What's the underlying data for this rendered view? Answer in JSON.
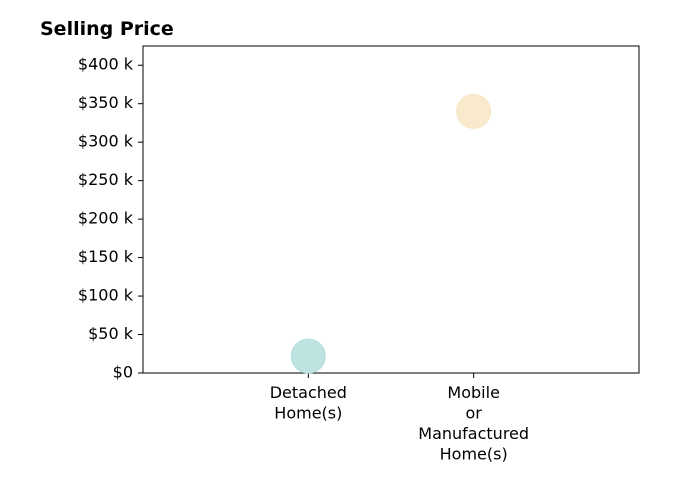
{
  "chart_data": {
    "type": "scatter",
    "title": "Selling Price",
    "xlabel": "",
    "ylabel": "",
    "categories": [
      [
        "Detached",
        "Home(s)"
      ],
      [
        "Mobile",
        "or",
        "Manufactured",
        "Home(s)"
      ]
    ],
    "points": [
      {
        "category_index": 0,
        "value": 22000,
        "color": "#b2dfdb"
      },
      {
        "category_index": 1,
        "value": 340000,
        "color": "#f8e6c4"
      }
    ],
    "ylim": [
      0,
      425000
    ],
    "yticks": [
      0,
      50000,
      100000,
      150000,
      200000,
      250000,
      300000,
      350000,
      400000
    ],
    "ytick_labels": [
      "$0",
      "$50 k",
      "$100 k",
      "$150 k",
      "$200 k",
      "$250 k",
      "$300 k",
      "$350 k",
      "$400 k"
    ],
    "xlim": [
      -1,
      2
    ],
    "grid": false,
    "legend": "none"
  }
}
